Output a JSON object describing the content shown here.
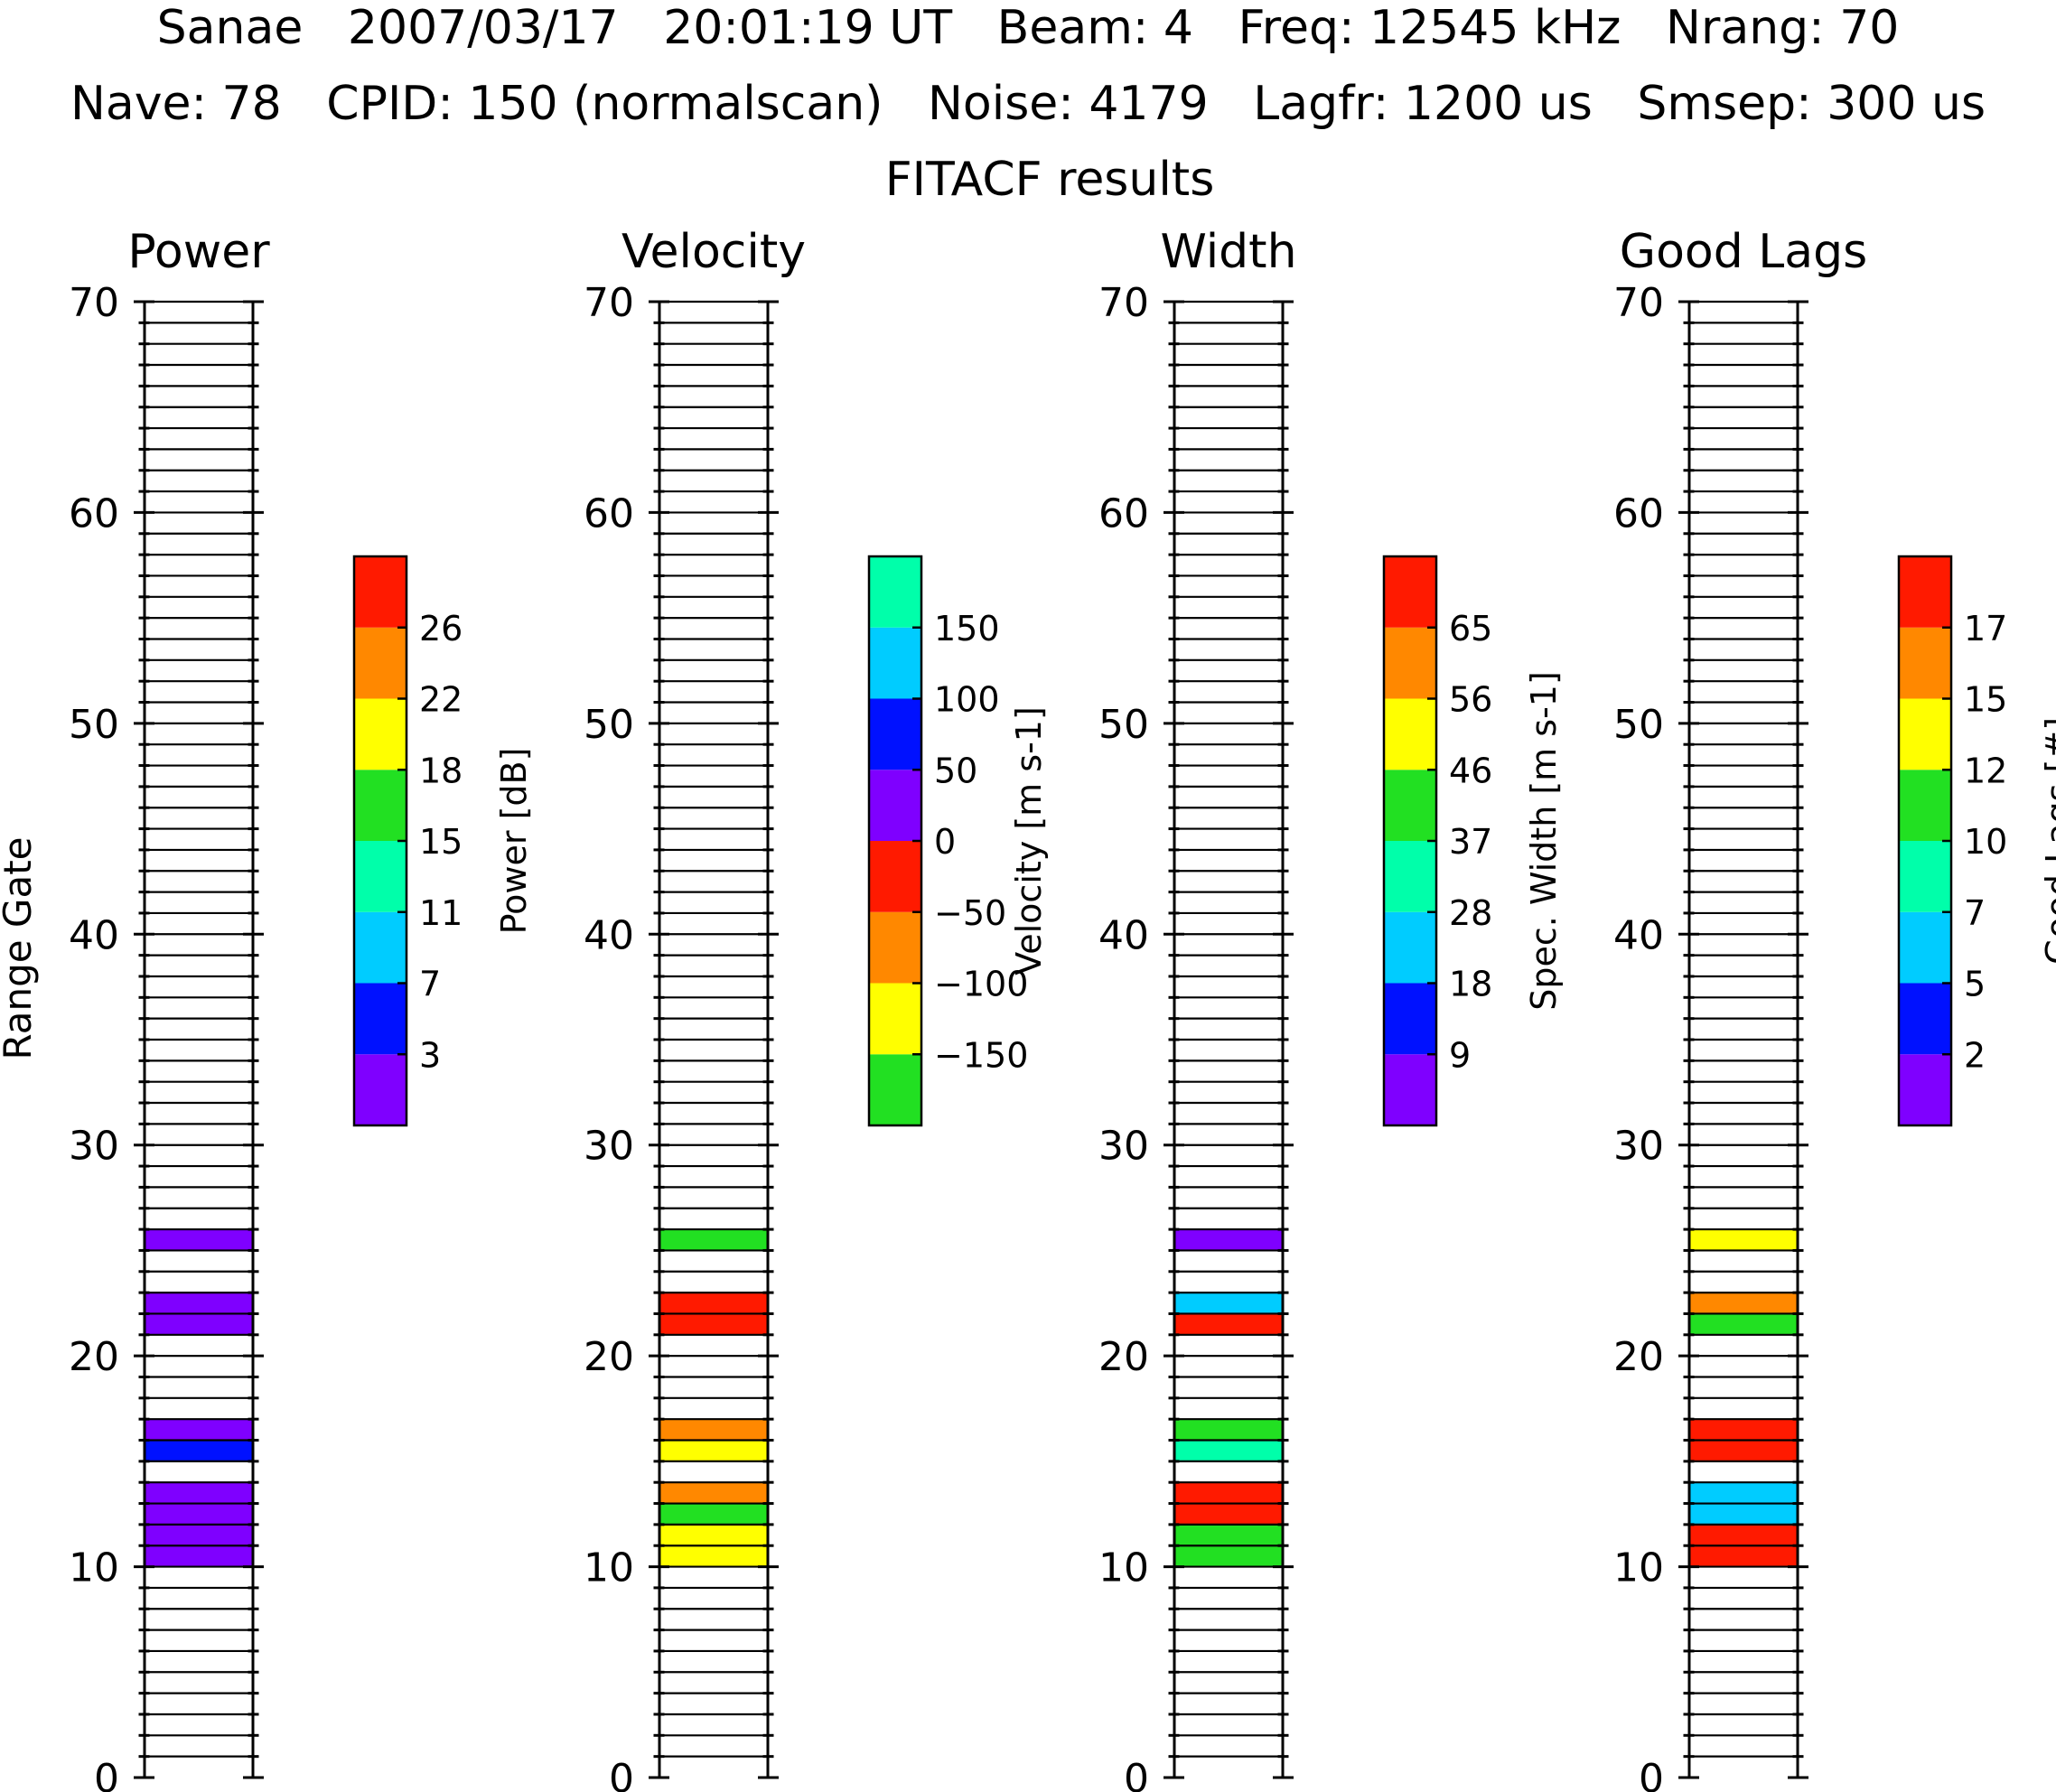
{
  "header": {
    "line1": "Sanae   2007/03/17   20:01:19 UT   Beam: 4   Freq: 12545 kHz   Nrang: 70",
    "line2": "Nave: 78   CPID: 150 (normalscan)   Noise: 4179   Lagfr: 1200 us   Smsep: 300 us",
    "line3": "FITACF results"
  },
  "chart_data": {
    "type": "heatmap",
    "ylabel": "Range Gate",
    "ylim": [
      0,
      70
    ],
    "yticks": [
      "0",
      "10",
      "20",
      "30",
      "40",
      "50",
      "60",
      "70"
    ],
    "grid": true,
    "panels": [
      {
        "title": "Power",
        "colorbar": {
          "label": "Power [dB]",
          "ticks": [
            "3",
            "7",
            "11",
            "15",
            "18",
            "22",
            "26"
          ],
          "colors": [
            "#7f00ff",
            "#0011ff",
            "#00ccff",
            "#00ffaa",
            "#22e022",
            "#ffff00",
            "#ff8800",
            "#ff1a00"
          ]
        },
        "gates": [
          {
            "gate": 10,
            "bin": 0
          },
          {
            "gate": 11,
            "bin": 0
          },
          {
            "gate": 12,
            "bin": 0
          },
          {
            "gate": 13,
            "bin": 0
          },
          {
            "gate": 15,
            "bin": 1
          },
          {
            "gate": 16,
            "bin": 0
          },
          {
            "gate": 21,
            "bin": 0
          },
          {
            "gate": 22,
            "bin": 0
          },
          {
            "gate": 25,
            "bin": 0
          }
        ]
      },
      {
        "title": "Velocity",
        "colorbar": {
          "label": "Velocity [m s-1]",
          "ticks": [
            "−150",
            "−100",
            "−50",
            "0",
            "50",
            "100",
            "150"
          ],
          "colors": [
            "#22e022",
            "#ffff00",
            "#ff8800",
            "#ff1a00",
            "#7f00ff",
            "#0011ff",
            "#00ccff",
            "#00ffaa"
          ]
        },
        "gates": [
          {
            "gate": 10,
            "bin": 1
          },
          {
            "gate": 11,
            "bin": 1
          },
          {
            "gate": 12,
            "bin": 0
          },
          {
            "gate": 13,
            "bin": 2
          },
          {
            "gate": 15,
            "bin": 1
          },
          {
            "gate": 16,
            "bin": 2
          },
          {
            "gate": 21,
            "bin": 3
          },
          {
            "gate": 22,
            "bin": 3
          },
          {
            "gate": 25,
            "bin": 0
          }
        ]
      },
      {
        "title": "Width",
        "colorbar": {
          "label": "Spec. Width [m s-1]",
          "ticks": [
            "9",
            "18",
            "28",
            "37",
            "46",
            "56",
            "65"
          ],
          "colors": [
            "#7f00ff",
            "#0011ff",
            "#00ccff",
            "#00ffaa",
            "#22e022",
            "#ffff00",
            "#ff8800",
            "#ff1a00"
          ]
        },
        "gates": [
          {
            "gate": 10,
            "bin": 4
          },
          {
            "gate": 11,
            "bin": 4
          },
          {
            "gate": 12,
            "bin": 7
          },
          {
            "gate": 13,
            "bin": 7
          },
          {
            "gate": 15,
            "bin": 3
          },
          {
            "gate": 16,
            "bin": 4
          },
          {
            "gate": 21,
            "bin": 7
          },
          {
            "gate": 22,
            "bin": 2
          },
          {
            "gate": 25,
            "bin": 0
          }
        ]
      },
      {
        "title": "Good Lags",
        "colorbar": {
          "label": "Good Lags [#]",
          "ticks": [
            "2",
            "5",
            "7",
            "10",
            "12",
            "15",
            "17"
          ],
          "colors": [
            "#7f00ff",
            "#0011ff",
            "#00ccff",
            "#00ffaa",
            "#22e022",
            "#ffff00",
            "#ff8800",
            "#ff1a00"
          ]
        },
        "gates": [
          {
            "gate": 10,
            "bin": 7
          },
          {
            "gate": 11,
            "bin": 7
          },
          {
            "gate": 12,
            "bin": 2
          },
          {
            "gate": 13,
            "bin": 2
          },
          {
            "gate": 15,
            "bin": 7
          },
          {
            "gate": 16,
            "bin": 7
          },
          {
            "gate": 21,
            "bin": 4
          },
          {
            "gate": 22,
            "bin": 6
          },
          {
            "gate": 25,
            "bin": 5
          }
        ]
      }
    ]
  }
}
